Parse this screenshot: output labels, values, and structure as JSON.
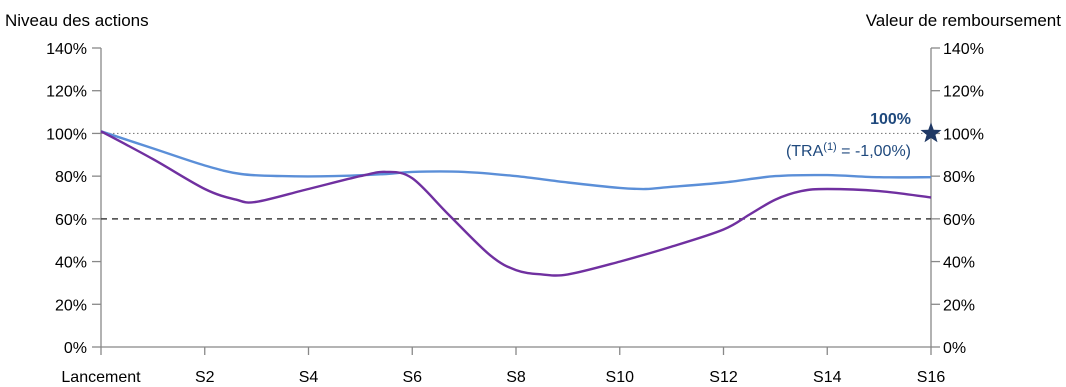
{
  "chart_data": {
    "type": "line",
    "ylabel_left": "Niveau des actions",
    "ylabel_right": "Valeur de remboursement",
    "y_ticks": [
      "0%",
      "20%",
      "40%",
      "60%",
      "80%",
      "100%",
      "120%",
      "140%"
    ],
    "ylim": [
      0,
      140
    ],
    "x": [
      0,
      2,
      4,
      6,
      8,
      10,
      12,
      14,
      16
    ],
    "x_tick_labels": [
      "Lancement",
      "S2",
      "S4",
      "S6",
      "S8",
      "S10",
      "S12",
      "S14",
      "S16"
    ],
    "xlim": [
      0,
      16
    ],
    "series": [
      {
        "color": "#5B8FD8",
        "points": [
          [
            0,
            101
          ],
          [
            1,
            93
          ],
          [
            2,
            85
          ],
          [
            2.7,
            81
          ],
          [
            3.5,
            80
          ],
          [
            4.5,
            80
          ],
          [
            5.5,
            81
          ],
          [
            6,
            82
          ],
          [
            7,
            82
          ],
          [
            8,
            80
          ],
          [
            9,
            77
          ],
          [
            10,
            74.5
          ],
          [
            10.5,
            74
          ],
          [
            11,
            75
          ],
          [
            12,
            77
          ],
          [
            13,
            80
          ],
          [
            14,
            80.5
          ],
          [
            15,
            79.5
          ],
          [
            16,
            79.5
          ]
        ]
      },
      {
        "color": "#7030A0",
        "points": [
          [
            0,
            101
          ],
          [
            1,
            88
          ],
          [
            2,
            74
          ],
          [
            2.6,
            69
          ],
          [
            3,
            68
          ],
          [
            4,
            74
          ],
          [
            5,
            80
          ],
          [
            5.5,
            82
          ],
          [
            6,
            79
          ],
          [
            6.7,
            62
          ],
          [
            7.5,
            43
          ],
          [
            8,
            36
          ],
          [
            8.5,
            34
          ],
          [
            9,
            34
          ],
          [
            10,
            40
          ],
          [
            11,
            47
          ],
          [
            12,
            55
          ],
          [
            12.5,
            62
          ],
          [
            13,
            69
          ],
          [
            13.5,
            73
          ],
          [
            14,
            74
          ],
          [
            15,
            73
          ],
          [
            16,
            70
          ]
        ]
      }
    ],
    "reference_lines": [
      {
        "y": 100,
        "style": "dotted",
        "color": "#808080"
      },
      {
        "y": 60,
        "style": "dashed",
        "color": "#404040"
      }
    ],
    "marker": {
      "x": 16,
      "y": 100,
      "shape": "star",
      "color": "#1F3864"
    },
    "annotation": {
      "value": "100%",
      "tra_prefix": "(TRA",
      "tra_sup": "(1)",
      "tra_suffix": " = -1,00%)"
    },
    "grid": false
  }
}
